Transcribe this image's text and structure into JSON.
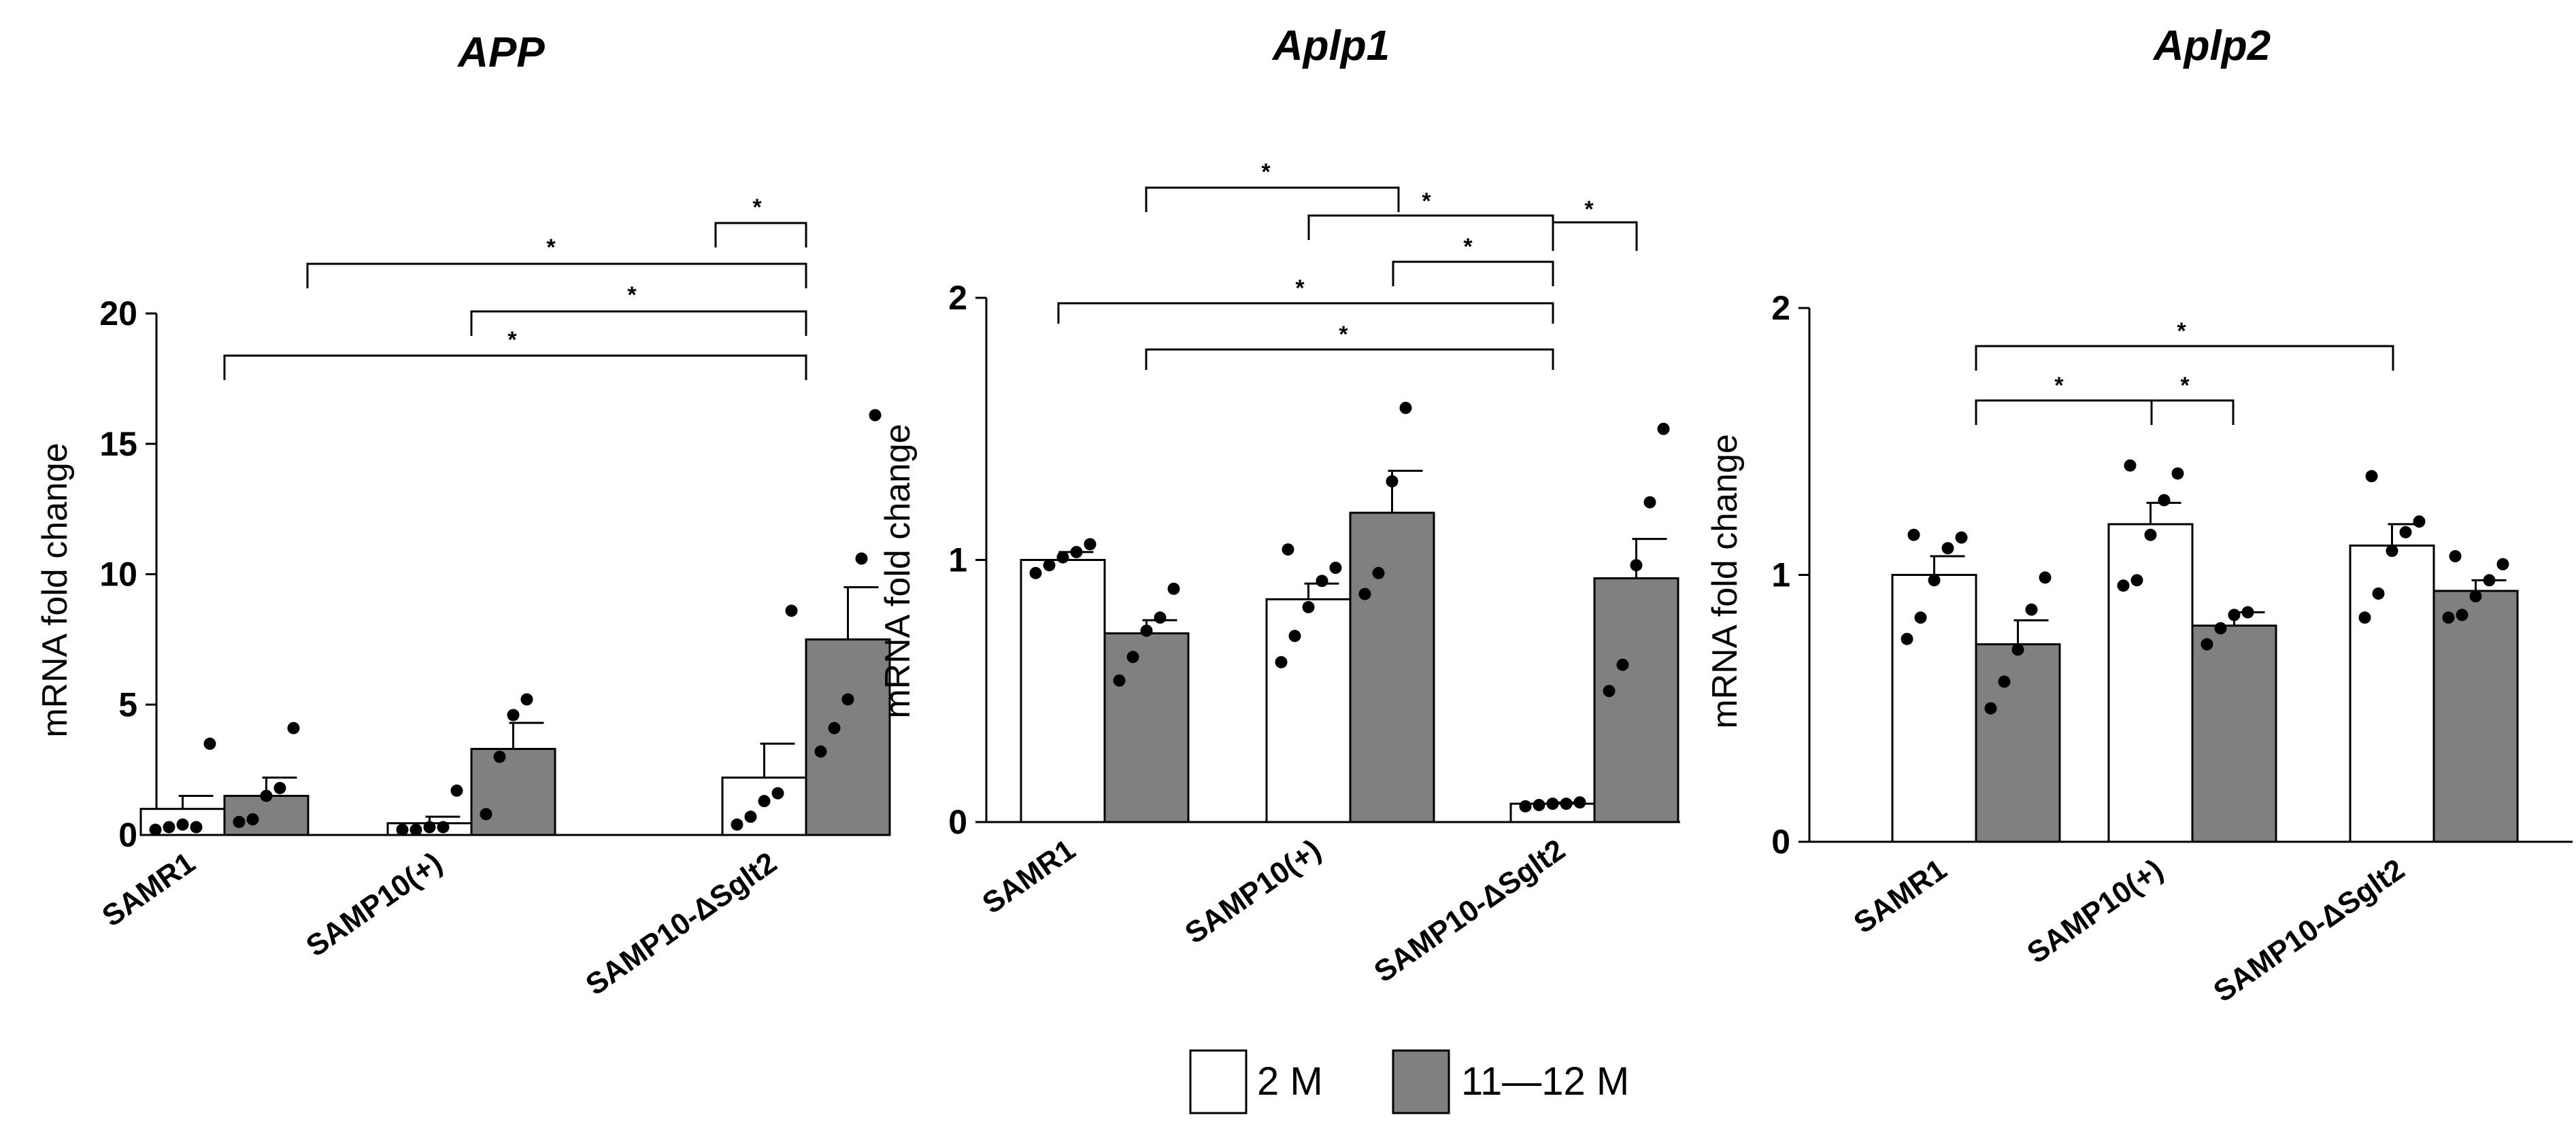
{
  "colors": {
    "young": "#ffffff",
    "old": "#808080",
    "stroke": "#000000"
  },
  "legend": {
    "young_label": "2 M",
    "old_label": "11—12 M"
  },
  "chart_data": [
    {
      "type": "bar",
      "title": "APP",
      "ylabel": "mRNA fold change",
      "xlabel": "",
      "ylim": [
        0,
        20
      ],
      "yticks": [
        "0",
        "5",
        "10",
        "15",
        "20"
      ],
      "categories": [
        "SAMR1",
        "SAMP10(+)",
        "SAMP10-ΔSglt2"
      ],
      "series": [
        {
          "name": "2 M",
          "values": [
            1.0,
            0.45,
            2.2
          ],
          "errors": [
            0.5,
            0.25,
            1.3
          ],
          "points": [
            [
              0.2,
              0.3,
              0.4,
              0.3,
              3.5
            ],
            [
              0.2,
              0.2,
              0.3,
              0.3,
              1.7
            ],
            [
              0.4,
              0.7,
              1.3,
              1.6,
              8.6
            ]
          ]
        },
        {
          "name": "11—12 M",
          "values": [
            1.5,
            3.3,
            7.5
          ],
          "errors": [
            0.7,
            1.0,
            2.0
          ],
          "points": [
            [
              0.5,
              0.6,
              1.5,
              1.8,
              4.1
            ],
            [
              0.8,
              3.0,
              4.6,
              5.2
            ],
            [
              3.2,
              4.1,
              5.2,
              10.6,
              16.1
            ]
          ]
        }
      ],
      "significance": [
        "*",
        "*",
        "*",
        "*"
      ]
    },
    {
      "type": "bar",
      "title": "Aplp1",
      "ylabel": "mRNA fold change",
      "xlabel": "",
      "ylim": [
        0,
        2
      ],
      "yticks": [
        "0",
        "1",
        "2"
      ],
      "categories": [
        "SAMR1",
        "SAMP10(+)",
        "SAMP10-ΔSglt2"
      ],
      "series": [
        {
          "name": "2 M",
          "values": [
            1.0,
            0.85,
            0.07
          ],
          "errors": [
            0.03,
            0.06,
            0.005
          ],
          "points": [
            [
              0.95,
              0.98,
              1.01,
              1.03,
              1.06
            ],
            [
              0.61,
              0.71,
              0.82,
              0.92,
              0.97,
              1.04
            ],
            [
              0.06,
              0.065,
              0.07,
              0.07,
              0.075
            ]
          ]
        },
        {
          "name": "11—12 M",
          "values": [
            0.72,
            1.18,
            0.93
          ],
          "errors": [
            0.05,
            0.16,
            0.15
          ],
          "points": [
            [
              0.54,
              0.63,
              0.73,
              0.78,
              0.89
            ],
            [
              0.87,
              0.95,
              1.3,
              1.58
            ],
            [
              0.5,
              0.6,
              0.98,
              1.22,
              1.5
            ]
          ]
        }
      ],
      "significance": [
        "*",
        "*",
        "*",
        "*",
        "*",
        "*"
      ]
    },
    {
      "type": "bar",
      "title": "Aplp2",
      "ylabel": "mRNA fold change",
      "xlabel": "",
      "ylim": [
        0,
        2
      ],
      "yticks": [
        "0",
        "1",
        "2"
      ],
      "categories": [
        "SAMR1",
        "SAMP10(+)",
        "SAMP10-ΔSglt2"
      ],
      "series": [
        {
          "name": "2 M",
          "values": [
            1.0,
            1.19,
            1.11
          ],
          "errors": [
            0.07,
            0.08,
            0.08
          ],
          "points": [
            [
              0.76,
              0.84,
              0.98,
              1.1,
              1.14,
              1.15
            ],
            [
              0.96,
              0.98,
              1.15,
              1.28,
              1.38,
              1.41
            ],
            [
              0.84,
              0.93,
              1.09,
              1.16,
              1.2,
              1.37
            ]
          ]
        },
        {
          "name": "11—12 M",
          "values": [
            0.74,
            0.81,
            0.94
          ],
          "errors": [
            0.09,
            0.05,
            0.04
          ],
          "points": [
            [
              0.5,
              0.6,
              0.72,
              0.87,
              0.99
            ],
            [
              0.74,
              0.8,
              0.85,
              0.86
            ],
            [
              0.84,
              0.85,
              0.92,
              0.98,
              1.04,
              1.07
            ]
          ]
        }
      ],
      "significance": [
        "*",
        "*",
        "*"
      ]
    }
  ]
}
